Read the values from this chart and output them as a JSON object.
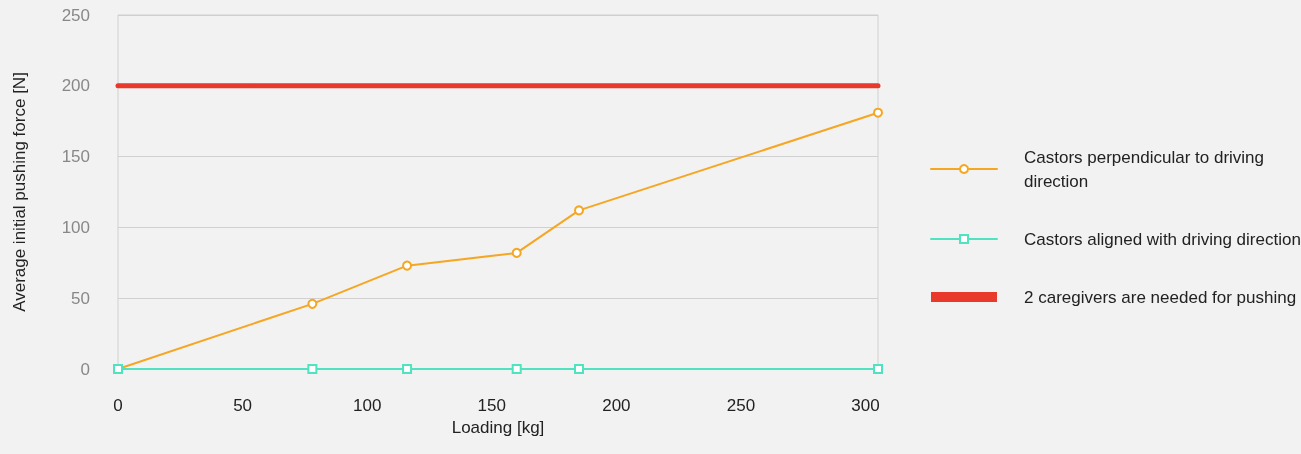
{
  "chart_data": {
    "type": "line",
    "xlabel": "Loading [kg]",
    "ylabel": "Average initial pushing force [N]",
    "xlim": [
      0,
      305
    ],
    "xticks": [
      0,
      50,
      100,
      150,
      200,
      250,
      300
    ],
    "ylim": [
      0,
      250
    ],
    "yticks": [
      0,
      50,
      100,
      150,
      200,
      250
    ],
    "grid": "y",
    "legend": "right",
    "series": [
      {
        "name": "Castors perpendicular to driving direction",
        "color": "#f5a623",
        "marker": "circle",
        "x": [
          0,
          78,
          116,
          160,
          185,
          305
        ],
        "values": [
          0,
          46,
          73,
          82,
          112,
          181
        ]
      },
      {
        "name": "Castors aligned with driving direction",
        "color": "#50e3c2",
        "marker": "square",
        "x": [
          0,
          78,
          116,
          160,
          185,
          305
        ],
        "values": [
          0,
          0,
          0,
          0,
          0,
          0
        ]
      },
      {
        "name": "2 caregivers are needed for pushing",
        "color": "#e8392b",
        "marker": "none",
        "x": [
          0,
          305
        ],
        "values": [
          200,
          200
        ]
      }
    ]
  }
}
